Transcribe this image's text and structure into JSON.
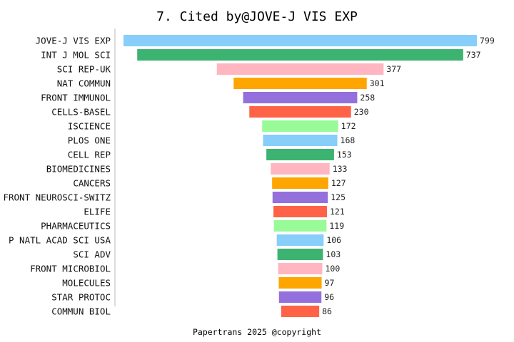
{
  "chart_data": {
    "type": "bar",
    "orientation": "horizontal-centered",
    "title": "7. Cited by@JOVE-J VIS EXP",
    "footer": "Papertrans 2025 @copyright",
    "categories": [
      "JOVE-J VIS EXP",
      "INT J MOL SCI",
      "SCI REP-UK",
      "NAT COMMUN",
      "FRONT IMMUNOL",
      "CELLS-BASEL",
      "ISCIENCE",
      "PLOS ONE",
      "CELL REP",
      "BIOMEDICINES",
      "CANCERS",
      "FRONT NEUROSCI-SWITZ",
      "ELIFE",
      "PHARMACEUTICS",
      "P NATL ACAD SCI USA",
      "SCI ADV",
      "FRONT MICROBIOL",
      "MOLECULES",
      "STAR PROTOC",
      "COMMUN BIOL"
    ],
    "values": [
      799,
      737,
      377,
      301,
      258,
      230,
      172,
      168,
      153,
      133,
      127,
      125,
      121,
      119,
      106,
      103,
      100,
      97,
      96,
      86
    ],
    "colors": [
      "#87CEFA",
      "#3CB371",
      "#FFB6C1",
      "#FFA500",
      "#9370DB",
      "#FF6347",
      "#98FB98"
    ],
    "grid": false,
    "legend": "none"
  }
}
